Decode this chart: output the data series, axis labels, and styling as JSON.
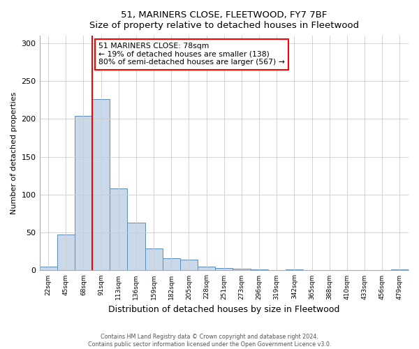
{
  "title": "51, MARINERS CLOSE, FLEETWOOD, FY7 7BF",
  "subtitle": "Size of property relative to detached houses in Fleetwood",
  "xlabel": "Distribution of detached houses by size in Fleetwood",
  "ylabel": "Number of detached properties",
  "bar_labels": [
    "22sqm",
    "45sqm",
    "68sqm",
    "91sqm",
    "113sqm",
    "136sqm",
    "159sqm",
    "182sqm",
    "205sqm",
    "228sqm",
    "251sqm",
    "273sqm",
    "296sqm",
    "319sqm",
    "342sqm",
    "365sqm",
    "388sqm",
    "410sqm",
    "433sqm",
    "456sqm",
    "479sqm"
  ],
  "bar_values": [
    5,
    47,
    204,
    226,
    108,
    63,
    29,
    16,
    14,
    5,
    3,
    2,
    1,
    0,
    1,
    0,
    0,
    0,
    0,
    0,
    1
  ],
  "bar_color": "#c9d9ea",
  "bar_edge_color": "#5b8db8",
  "vline_x": 3.0,
  "vline_color": "red",
  "annotation_title": "51 MARINERS CLOSE: 78sqm",
  "annotation_line1": "← 19% of detached houses are smaller (138)",
  "annotation_line2": "80% of semi-detached houses are larger (567) →",
  "ylim": [
    0,
    310
  ],
  "yticks": [
    0,
    50,
    100,
    150,
    200,
    250,
    300
  ],
  "footer1": "Contains HM Land Registry data © Crown copyright and database right 2024.",
  "footer2": "Contains public sector information licensed under the Open Government Licence v3.0.",
  "bg_color": "#ffffff",
  "plot_bg_color": "#ffffff"
}
